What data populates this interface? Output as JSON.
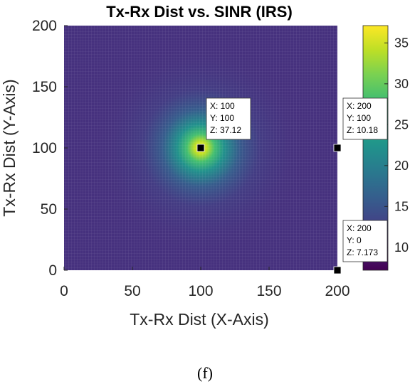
{
  "chart_data": {
    "type": "heatmap",
    "title": "Tx-Rx Dist vs. SINR (IRS)",
    "xlabel": "Tx-Rx Dist (X-Axis)",
    "ylabel": "Tx-Rx Dist (Y-Axis)",
    "xlim": [
      0,
      200
    ],
    "ylim": [
      0,
      200
    ],
    "xticks": [
      "0",
      "50",
      "100",
      "150",
      "200"
    ],
    "yticks": [
      "0",
      "50",
      "100",
      "150",
      "200"
    ],
    "colorbar": {
      "range": [
        7.2,
        37.12
      ],
      "ticks": [
        "10",
        "15",
        "20",
        "25",
        "30",
        "35"
      ],
      "colormap": "viridis"
    },
    "peak": {
      "x": 100,
      "y": 100,
      "z": 37.12
    },
    "grid": true,
    "datatips": [
      {
        "x": 100,
        "y": 100,
        "z": 37.12,
        "x_text": "X: 100",
        "y_text": "Y: 100",
        "z_text": "Z: 37.12"
      },
      {
        "x": 200,
        "y": 100,
        "z": 10.18,
        "x_text": "X: 200",
        "y_text": "Y: 100",
        "z_text": "Z: 10.18"
      },
      {
        "x": 200,
        "y": 0,
        "z": 7.173,
        "x_text": "X: 200",
        "y_text": "Y: 0",
        "z_text": "Z: 7.173"
      }
    ]
  },
  "caption": "(f)"
}
